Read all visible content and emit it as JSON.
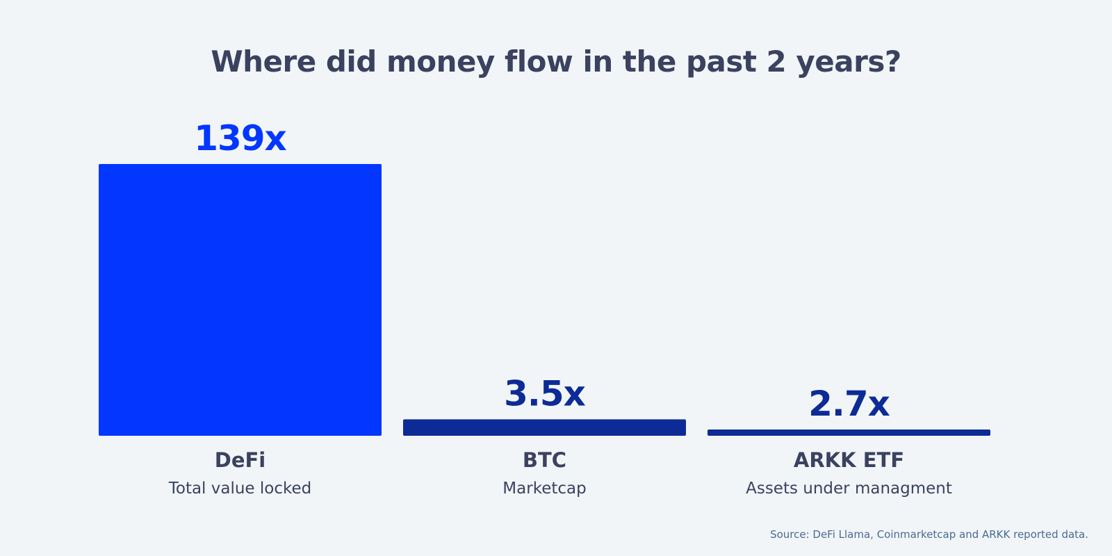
{
  "title": "Where did money flow in the past 2 years?",
  "source": "Source: DeFi Llama, Coinmarketcap and ARKK reported data.",
  "colors": {
    "background": "#f1f5f7",
    "text": "#3b4260",
    "defi_bar": "#0336ff",
    "other_bars": "#0d2b96",
    "source_text": "#4a6a92"
  },
  "chart_data": {
    "type": "bar",
    "title": "Where did money flow in the past 2 years?",
    "xlabel": "",
    "ylabel": "",
    "grid": false,
    "categories": [
      "DeFi",
      "BTC",
      "ARKK ETF"
    ],
    "subtitles": [
      "Total value locked",
      "Marketcap",
      "Assets under managment"
    ],
    "values": [
      139,
      3.5,
      2.7
    ],
    "value_labels": [
      "139x",
      "3.5x",
      "2.7x"
    ],
    "bar_colors": [
      "#0336ff",
      "#0d2b96",
      "#0d2b96"
    ],
    "ylim": [
      0,
      139
    ]
  }
}
